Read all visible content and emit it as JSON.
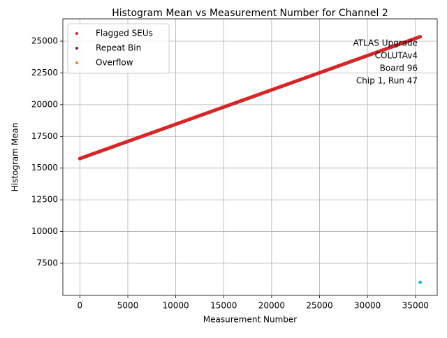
{
  "chart_data": {
    "type": "scatter",
    "title": "Histogram Mean vs Measurement Number for Channel 2",
    "x_label": "Measurement Number",
    "y_label": "Histogram Mean",
    "annotation": [
      "ATLAS Upgrade",
      "COLUTAv4",
      "Board 96",
      "Chip 1, Run 47"
    ],
    "xlim": [
      -1775,
      37275
    ],
    "ylim": [
      4968,
      26760
    ],
    "xticks": [
      0,
      5000,
      10000,
      15000,
      20000,
      25000,
      30000,
      35000
    ],
    "yticks": [
      7500,
      10000,
      12500,
      15000,
      17500,
      20000,
      22500,
      25000
    ],
    "grid": true,
    "legend": "upper left",
    "series": [
      {
        "name": "Flagged SEUs",
        "color": "#d62728",
        "x": [
          0,
          500,
          1000,
          1500,
          2000,
          2500,
          3000,
          3500,
          4000,
          4500,
          5000,
          5500,
          6000,
          6500,
          7000,
          7500,
          8000,
          8500,
          9000,
          9500,
          10000,
          10500,
          11000,
          11500,
          12000,
          12500,
          13000,
          13500,
          14000,
          14500,
          15000,
          15500,
          16000,
          16500,
          17000,
          17500,
          18000,
          18500,
          19000,
          19500,
          20000,
          20500,
          21000,
          21500,
          22000,
          22500,
          23000,
          23500,
          24000,
          24500,
          25000,
          25500,
          26000,
          26500,
          27000,
          27500,
          28000,
          28500,
          29000,
          29500,
          30000,
          30500,
          31000,
          31500,
          32000,
          32500,
          33000,
          33500,
          34000,
          34500,
          35000,
          35500
        ],
        "values": [
          15750,
          15885,
          16020,
          16156,
          16291,
          16426,
          16561,
          16696,
          16832,
          16967,
          17102,
          17237,
          17373,
          17508,
          17643,
          17778,
          17913,
          18049,
          18184,
          18319,
          18454,
          18589,
          18725,
          18860,
          18995,
          19130,
          19265,
          19401,
          19536,
          19671,
          19806,
          19942,
          20077,
          20212,
          20347,
          20482,
          20618,
          20753,
          20888,
          21023,
          21158,
          21294,
          21429,
          21564,
          21699,
          21835,
          21970,
          22105,
          22240,
          22375,
          22511,
          22646,
          22781,
          22916,
          23051,
          23187,
          23322,
          23457,
          23592,
          23727,
          23863,
          23998,
          24133,
          24268,
          24404,
          24539,
          24674,
          24809,
          24944,
          25080,
          25215,
          25350
        ]
      },
      {
        "name": "Repeat Bin",
        "color": "#7b0f5e",
        "x": [],
        "values": []
      },
      {
        "name": "Overflow",
        "color": "#ff7f0e",
        "x": [],
        "values": []
      },
      {
        "color": "#17becf",
        "x": [
          35500
        ],
        "values": [
          6000
        ]
      }
    ]
  }
}
